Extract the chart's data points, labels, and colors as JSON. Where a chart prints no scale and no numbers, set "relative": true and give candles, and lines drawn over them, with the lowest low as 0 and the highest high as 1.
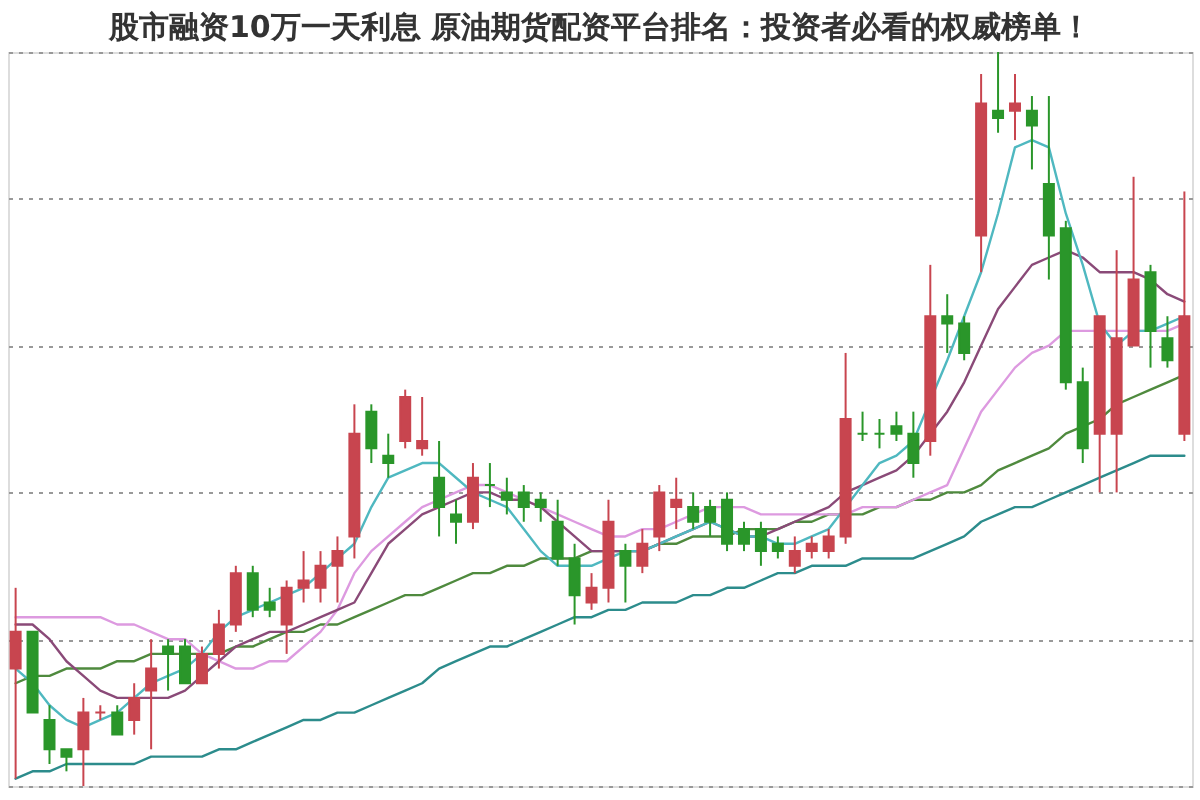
{
  "chart_data": {
    "type": "candlestick",
    "title": "股市融资10万一天利息 原油期货配资平台排名：投资者必看的权威榜单！",
    "relative": true,
    "tick_labels": false,
    "grid": "y",
    "line_style": "solid",
    "categories": [
      null,
      null,
      null,
      null,
      null,
      null,
      null,
      null,
      null,
      null,
      null,
      null,
      null,
      null,
      null,
      null,
      null,
      null,
      null,
      null,
      null,
      null,
      null,
      null,
      null,
      null,
      null,
      null,
      null,
      null,
      null,
      null,
      null,
      null,
      null,
      null,
      null,
      null,
      null,
      null,
      null,
      null,
      null,
      null,
      null,
      null,
      null,
      null,
      null,
      null,
      null,
      null,
      null,
      null,
      null,
      null,
      null,
      null,
      null,
      null,
      null,
      null,
      null,
      null,
      null,
      null,
      null,
      null,
      null,
      null
    ],
    "series": [
      {
        "type": "line",
        "color": "#2c8c8c",
        "values": [
          0.01,
          0.02,
          0.02,
          0.03,
          0.03,
          0.03,
          0.03,
          0.03,
          0.04,
          0.04,
          0.04,
          0.04,
          0.05,
          0.05,
          0.06,
          0.07,
          0.08,
          0.09,
          0.09,
          0.1,
          0.1,
          0.11,
          0.12,
          0.13,
          0.14,
          0.16,
          0.17,
          0.18,
          0.19,
          0.19,
          0.2,
          0.21,
          0.22,
          0.23,
          0.23,
          0.24,
          0.24,
          0.25,
          0.25,
          0.25,
          0.26,
          0.26,
          0.27,
          0.27,
          0.28,
          0.29,
          0.29,
          0.3,
          0.3,
          0.3,
          0.31,
          0.31,
          0.31,
          0.31,
          0.32,
          0.33,
          0.34,
          0.36,
          0.37,
          0.38,
          0.38,
          0.39,
          0.4,
          0.41,
          0.42,
          0.43,
          0.44,
          0.45,
          0.45,
          0.45
        ]
      },
      {
        "type": "line",
        "color": "#4f8a3e",
        "values": [
          0.14,
          0.15,
          0.15,
          0.16,
          0.16,
          0.16,
          0.17,
          0.17,
          0.18,
          0.18,
          0.18,
          0.18,
          0.18,
          0.19,
          0.19,
          0.2,
          0.21,
          0.21,
          0.22,
          0.22,
          0.23,
          0.24,
          0.25,
          0.26,
          0.26,
          0.27,
          0.28,
          0.29,
          0.29,
          0.3,
          0.3,
          0.31,
          0.31,
          0.31,
          0.32,
          0.32,
          0.32,
          0.32,
          0.33,
          0.33,
          0.34,
          0.34,
          0.34,
          0.35,
          0.35,
          0.35,
          0.36,
          0.36,
          0.37,
          0.37,
          0.37,
          0.38,
          0.38,
          0.39,
          0.39,
          0.4,
          0.4,
          0.41,
          0.43,
          0.44,
          0.45,
          0.46,
          0.48,
          0.49,
          0.5,
          0.52,
          0.53,
          0.54,
          0.55,
          0.56
        ]
      },
      {
        "type": "line",
        "color": "#dd9ae0",
        "values": [
          0.23,
          0.23,
          0.23,
          0.23,
          0.23,
          0.23,
          0.22,
          0.22,
          0.21,
          0.2,
          0.2,
          0.18,
          0.17,
          0.16,
          0.16,
          0.17,
          0.17,
          0.19,
          0.21,
          0.24,
          0.29,
          0.32,
          0.34,
          0.36,
          0.38,
          0.39,
          0.4,
          0.41,
          0.41,
          0.4,
          0.39,
          0.38,
          0.37,
          0.36,
          0.35,
          0.34,
          0.34,
          0.35,
          0.35,
          0.36,
          0.37,
          0.38,
          0.38,
          0.38,
          0.37,
          0.37,
          0.37,
          0.37,
          0.37,
          0.37,
          0.38,
          0.38,
          0.38,
          0.39,
          0.4,
          0.41,
          0.46,
          0.51,
          0.54,
          0.57,
          0.59,
          0.6,
          0.62,
          0.62,
          0.62,
          0.62,
          0.62,
          0.62,
          0.62,
          0.63
        ]
      },
      {
        "type": "line",
        "color": "#8a4a78",
        "values": [
          0.22,
          0.22,
          0.2,
          0.17,
          0.15,
          0.13,
          0.12,
          0.12,
          0.12,
          0.12,
          0.13,
          0.15,
          0.17,
          0.19,
          0.2,
          0.21,
          0.21,
          0.22,
          0.23,
          0.24,
          0.25,
          0.29,
          0.33,
          0.35,
          0.37,
          0.38,
          0.39,
          0.4,
          0.4,
          0.39,
          0.39,
          0.38,
          0.36,
          0.34,
          0.32,
          0.32,
          0.32,
          0.32,
          0.33,
          0.34,
          0.35,
          0.36,
          null,
          0.34,
          0.34,
          0.35,
          0.36,
          0.37,
          0.38,
          0.4,
          0.41,
          0.42,
          0.43,
          0.45,
          0.48,
          0.51,
          0.55,
          0.6,
          0.65,
          0.68,
          0.71,
          0.72,
          0.73,
          0.72,
          0.7,
          0.7,
          0.7,
          0.69,
          0.67,
          0.66
        ]
      },
      {
        "type": "line",
        "color": "#4fb8c0",
        "values": [
          0.16,
          0.14,
          0.11,
          0.09,
          0.08,
          0.09,
          0.1,
          0.12,
          0.14,
          0.15,
          0.16,
          0.18,
          0.21,
          0.23,
          0.24,
          0.25,
          0.26,
          0.27,
          0.29,
          0.31,
          0.33,
          0.38,
          0.42,
          0.43,
          0.44,
          0.44,
          0.42,
          0.4,
          0.39,
          0.38,
          0.35,
          0.32,
          0.3,
          0.3,
          0.3,
          0.31,
          0.32,
          0.32,
          0.33,
          0.34,
          0.35,
          0.36,
          0.35,
          0.34,
          0.34,
          0.33,
          0.33,
          0.34,
          0.35,
          0.38,
          0.41,
          0.44,
          0.45,
          0.47,
          null,
          0.58,
          0.64,
          0.7,
          0.78,
          0.87,
          0.88,
          0.87,
          0.78,
          0.71,
          0.63,
          0.6,
          0.62,
          0.62,
          0.63,
          0.64
        ]
      },
      {
        "ohlc": [
          [
            0.16,
            0.27,
            0.01,
            0.21
          ],
          [
            0.21,
            0.21,
            0.1,
            0.1
          ],
          [
            0.09,
            0.11,
            0.03,
            0.05
          ],
          [
            0.05,
            0.05,
            0.02,
            0.04
          ],
          [
            0.05,
            0.12,
            0,
            0.1
          ],
          [
            0.1,
            0.11,
            0.09,
            0.1
          ],
          [
            0.1,
            0.11,
            0.07,
            0.07
          ],
          [
            0.09,
            0.14,
            0.07,
            0.12
          ],
          [
            0.13,
            0.2,
            0.05,
            0.16
          ],
          [
            0.19,
            0.2,
            0.13,
            0.18
          ],
          [
            0.19,
            0.2,
            0.14,
            0.14
          ],
          [
            0.14,
            0.19,
            0.14,
            0.18
          ],
          [
            0.18,
            0.24,
            0.16,
            0.22
          ],
          [
            0.22,
            0.3,
            0.21,
            0.29
          ],
          [
            0.29,
            0.3,
            0.23,
            0.24
          ],
          [
            0.25,
            0.27,
            0.23,
            0.24
          ],
          [
            0.22,
            0.28,
            0.18,
            0.27
          ],
          [
            0.27,
            0.32,
            0.25,
            0.28
          ],
          [
            0.27,
            0.32,
            0.25,
            0.3
          ],
          [
            0.3,
            0.34,
            0.25,
            0.32
          ],
          [
            0.34,
            0.52,
            0.31,
            0.48
          ],
          [
            0.51,
            0.52,
            0.44,
            0.46
          ],
          [
            0.45,
            0.48,
            0.42,
            0.44
          ],
          [
            0.47,
            0.54,
            0.46,
            0.53
          ],
          [
            0.46,
            0.53,
            0.45,
            0.47
          ],
          [
            0.42,
            0.47,
            0.34,
            0.38
          ],
          [
            0.37,
            0.39,
            0.33,
            0.36
          ],
          [
            0.36,
            0.44,
            0.35,
            0.42
          ],
          [
            0.41,
            0.44,
            0.38,
            0.41
          ],
          [
            0.4,
            0.42,
            0.37,
            0.39
          ],
          [
            0.4,
            0.41,
            0.36,
            0.38
          ],
          [
            0.39,
            0.4,
            0.36,
            0.38
          ],
          [
            0.36,
            0.39,
            0.3,
            0.31
          ],
          [
            0.31,
            0.33,
            0.22,
            0.26
          ],
          [
            0.25,
            0.29,
            0.24,
            0.27
          ],
          [
            0.27,
            0.39,
            0.25,
            0.36
          ],
          [
            0.32,
            0.33,
            0.25,
            0.3
          ],
          [
            0.3,
            0.35,
            0.29,
            0.33
          ],
          [
            0.34,
            0.41,
            0.32,
            0.4
          ],
          [
            0.38,
            0.42,
            0.35,
            0.39
          ],
          [
            0.38,
            0.4,
            0.35,
            0.36
          ],
          [
            0.38,
            0.39,
            0.34,
            0.36
          ],
          [
            0.39,
            0.4,
            0.32,
            0.33
          ],
          [
            0.35,
            0.36,
            0.32,
            0.33
          ],
          [
            0.35,
            0.36,
            0.3,
            0.32
          ],
          [
            0.33,
            0.34,
            0.31,
            0.32
          ],
          [
            0.3,
            0.34,
            0.29,
            0.32
          ],
          [
            0.32,
            0.34,
            0.31,
            0.33
          ],
          [
            0.32,
            0.35,
            0.31,
            0.34
          ],
          [
            0.34,
            0.59,
            0.33,
            0.5
          ],
          [
            0.48,
            0.51,
            0.47,
            0.48
          ],
          [
            0.48,
            0.5,
            0.46,
            0.48
          ],
          [
            0.49,
            0.51,
            0.47,
            0.48
          ],
          [
            0.48,
            0.51,
            0.42,
            0.44
          ],
          [
            0.47,
            0.71,
            0.45,
            0.64
          ],
          [
            0.64,
            0.67,
            0.59,
            0.63
          ],
          [
            0.63,
            0.64,
            0.58,
            0.59
          ],
          [
            0.75,
            0.97,
            0.7,
            0.93
          ],
          [
            0.92,
            1.0,
            0.89,
            0.91
          ],
          [
            0.92,
            0.97,
            0.88,
            0.93
          ],
          [
            0.92,
            0.94,
            0.84,
            0.9
          ],
          [
            0.82,
            0.94,
            0.69,
            0.75
          ],
          [
            0.76,
            0.77,
            0.54,
            0.55
          ],
          [
            0.55,
            0.57,
            0.44,
            0.46
          ],
          [
            0.48,
            0.64,
            0.4,
            0.64
          ],
          [
            0.48,
            0.73,
            0.4,
            0.61
          ],
          [
            0.6,
            0.83,
            0.6,
            0.69
          ],
          [
            0.7,
            0.71,
            0.57,
            0.62
          ],
          [
            0.61,
            0.64,
            0.57,
            0.58
          ],
          [
            0.48,
            0.81,
            0.47,
            0.64
          ]
        ],
        "colors": [
          "#c8454f",
          "#2a962a",
          "#2a962a",
          "#2a962a",
          "#c8454f",
          "#c8454f",
          "#2a962a",
          "#c8454f",
          "#c8454f",
          "#2a962a",
          "#2a962a",
          "#c8454f",
          "#c8454f",
          "#c8454f",
          "#2a962a",
          "#2a962a",
          "#c8454f",
          "#c8454f",
          "#c8454f",
          "#c8454f",
          "#c8454f",
          "#2a962a",
          "#2a962a",
          "#c8454f",
          "#c8454f",
          "#2a962a",
          "#2a962a",
          "#c8454f",
          "#2a962a",
          "#2a962a",
          "#2a962a",
          "#2a962a",
          "#2a962a",
          "#2a962a",
          "#c8454f",
          "#c8454f",
          "#2a962a",
          "#c8454f",
          "#c8454f",
          "#c8454f",
          "#2a962a",
          "#2a962a",
          "#2a962a",
          "#2a962a",
          "#2a962a",
          "#2a962a",
          "#c8454f",
          "#c8454f",
          "#c8454f",
          "#c8454f",
          "#2a962a",
          "#2a962a",
          "#2a962a",
          "#2a962a",
          "#c8454f",
          "#2a962a",
          "#2a962a",
          "#c8454f",
          "#2a962a",
          "#c8454f",
          "#2a962a",
          "#2a962a",
          "#2a962a",
          "#2a962a",
          "#c8454f",
          "#c8454f",
          "#c8454f",
          "#2a962a",
          "#2a962a",
          "#c8454f"
        ]
      }
    ]
  }
}
